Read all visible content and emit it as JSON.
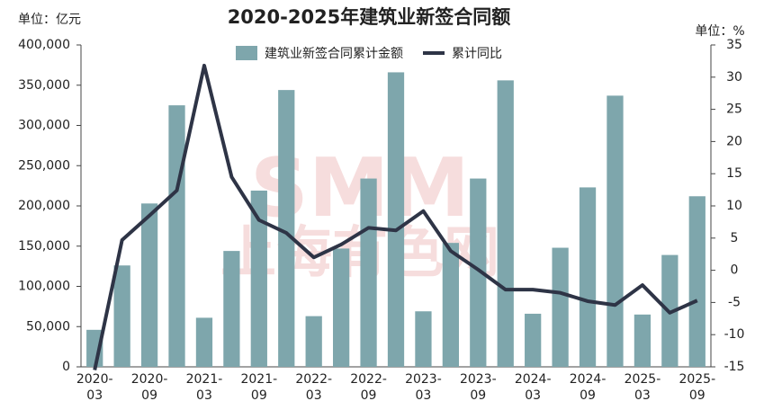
{
  "chart_data": {
    "type": "bar-line",
    "title": "2020-2025年建筑业新签合同额",
    "y_unit": "单位：亿元",
    "y2_unit": "单位：%",
    "watermark": [
      "SMM",
      "上海有色网"
    ],
    "categories": [
      "2020-03",
      null,
      "2020-09",
      null,
      "2021-03",
      null,
      "2021-09",
      null,
      "2022-03",
      null,
      "2022-09",
      null,
      "2023-03",
      null,
      "2023-09",
      null,
      "2024-03",
      null,
      "2024-09",
      null,
      "2025-03",
      null,
      "2025-09"
    ],
    "series": [
      {
        "name": "建筑业新签合同累计金额",
        "color": "#7ea6ac",
        "kind": "bar",
        "values": [
          46000,
          126000,
          203000,
          325000,
          61000,
          144000,
          219000,
          344000,
          63000,
          147000,
          234000,
          366000,
          69000,
          154000,
          234000,
          356000,
          66000,
          148000,
          223000,
          337000,
          65000,
          139000,
          212000
        ]
      },
      {
        "name": "累计同比",
        "color": "#2e3446",
        "kind": "line",
        "axis": "y2",
        "values": [
          -15.5,
          4.7,
          8.5,
          12.4,
          31.8,
          14.5,
          7.8,
          5.8,
          2.0,
          4.0,
          6.6,
          6.2,
          9.2,
          3.0,
          0.1,
          -3.0,
          -3.0,
          -3.5,
          -4.8,
          -5.4,
          -2.3,
          -6.6,
          -4.7
        ]
      }
    ],
    "ylim": [
      0,
      400000
    ],
    "yticks": [
      0,
      {
        "value": 50000,
        "label": "50,000"
      },
      {
        "value": 100000,
        "label": "100,000"
      },
      {
        "value": 150000,
        "label": "150,000"
      },
      {
        "value": 200000,
        "label": "200,000"
      },
      {
        "value": 250000,
        "label": "250,000"
      },
      {
        "value": 300000,
        "label": "300,000"
      },
      {
        "value": 350000,
        "label": "350,000"
      },
      {
        "value": 400000,
        "label": "400,000"
      }
    ],
    "y2lim": [
      -15,
      35
    ],
    "y2ticks": [
      -15,
      -10,
      -5,
      0,
      5,
      10,
      15,
      20,
      25,
      30,
      35
    ],
    "legend": "top",
    "grid": false
  }
}
